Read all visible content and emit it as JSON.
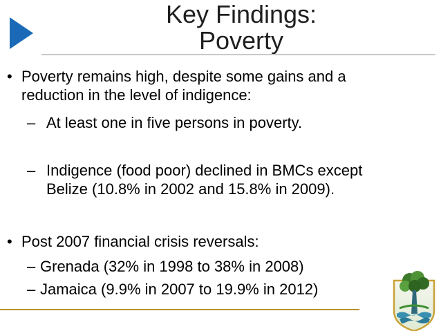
{
  "slide": {
    "title_line1": "Key Findings:",
    "title_line2": "Poverty",
    "accent_color": "#1a6ab7",
    "gold_rule_color": "#b8922e"
  },
  "bullets": [
    {
      "marker": "•",
      "lines": [
        "Poverty remains high, despite some gains and a",
        "reduction in the level of indigence:"
      ],
      "subitems": [
        {
          "marker": "–",
          "lines": [
            "At least one in five persons in poverty."
          ]
        },
        {
          "marker": "–",
          "lines": [
            "Indigence (food poor) declined in BMCs except",
            "Belize (10.8% in 2002 and 15.8% in 2009)."
          ]
        }
      ]
    },
    {
      "marker": "•",
      "lines": [
        "Post 2007 financial crisis reversals:"
      ],
      "subitems": [
        {
          "marker": "–",
          "lines": [
            "Grenada (32% in 1998 to 38% in 2008)"
          ]
        },
        {
          "marker": "–",
          "lines": [
            "Jamaica (9.9% in 2007 to 19.9% in 2012)"
          ]
        }
      ]
    }
  ],
  "icons": {
    "chevron": "chevron-right-icon",
    "logo": "bank-crest-logo-icon"
  }
}
